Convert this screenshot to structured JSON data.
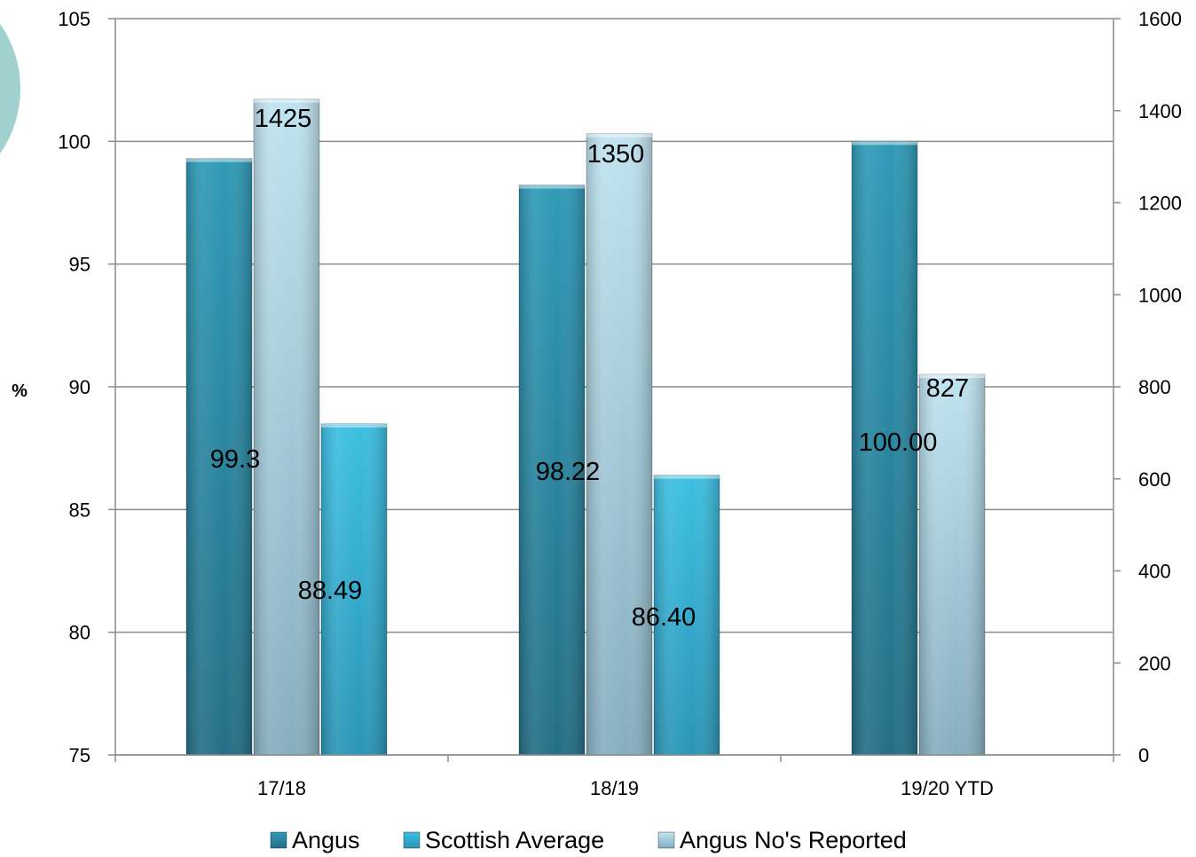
{
  "chart_data": {
    "type": "bar",
    "title": "",
    "xlabel": "",
    "ylabel": "%",
    "y2label": "",
    "categories": [
      "17/18",
      "18/19",
      "19/20 YTD"
    ],
    "ylim": [
      75,
      105
    ],
    "yticks": [
      75,
      80,
      85,
      90,
      95,
      100,
      105
    ],
    "y2lim": [
      0,
      1600
    ],
    "y2ticks": [
      0,
      200,
      400,
      600,
      800,
      1000,
      1200,
      1400,
      1600
    ],
    "grid": true,
    "legend_position": "bottom",
    "series": [
      {
        "name": "Angus",
        "axis": "left",
        "values": [
          99.3,
          98.22,
          100.0
        ],
        "labels": [
          "99.3",
          "98.22",
          "100.00"
        ],
        "color": "#2f8ea8"
      },
      {
        "name": "Scottish Average",
        "axis": "left",
        "values": [
          88.49,
          86.4,
          null
        ],
        "labels": [
          "88.49",
          "86.40",
          ""
        ],
        "color": "#35b3d8"
      },
      {
        "name": "Angus No's Reported",
        "axis": "right",
        "values": [
          1425,
          1350,
          827
        ],
        "labels": [
          "1425",
          "1350",
          "827"
        ],
        "color": "#a9d3e3"
      }
    ]
  }
}
